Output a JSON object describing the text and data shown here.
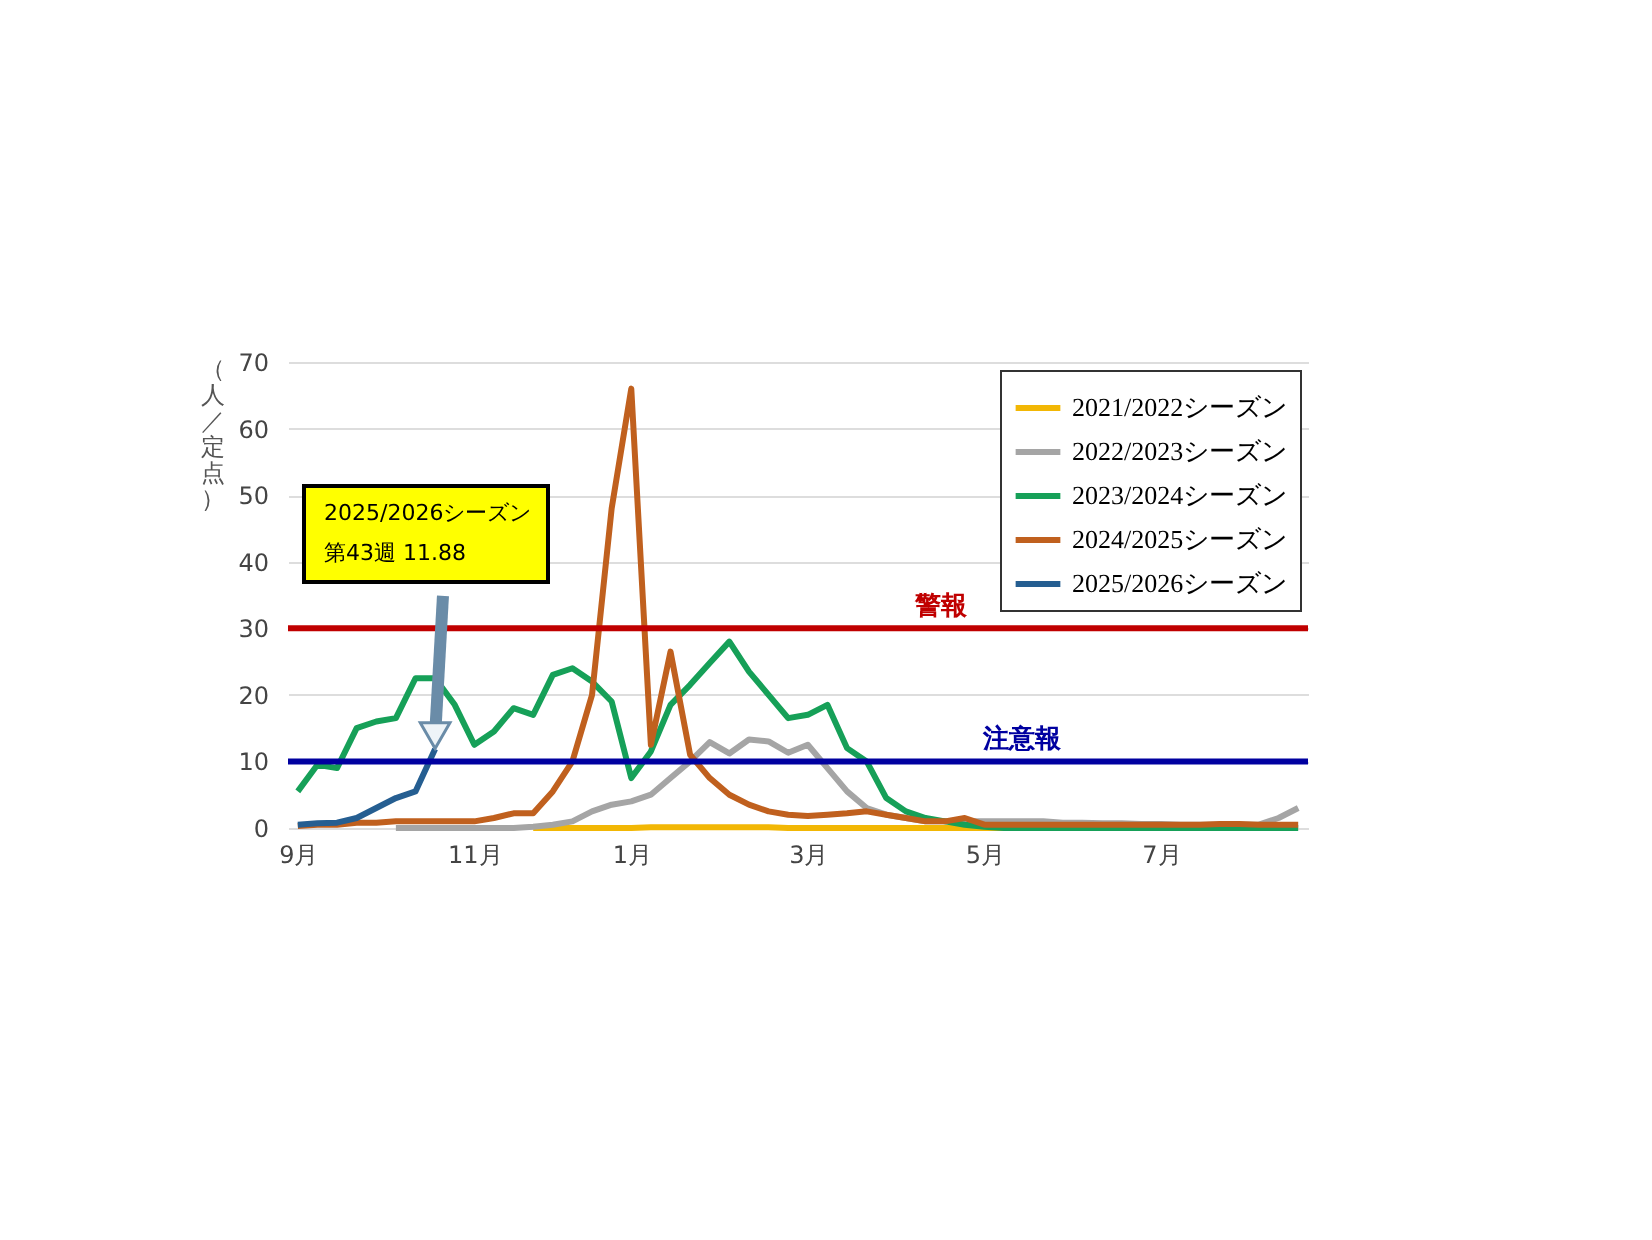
{
  "chart_data": {
    "type": "line",
    "ylabel": "（人／定点）",
    "categories": [
      "9月",
      null,
      null,
      null,
      null,
      null,
      null,
      null,
      null,
      "11月",
      null,
      null,
      null,
      null,
      null,
      null,
      null,
      "1月",
      null,
      null,
      null,
      null,
      null,
      null,
      null,
      null,
      "3月",
      null,
      null,
      null,
      null,
      null,
      null,
      null,
      null,
      "5月",
      null,
      null,
      null,
      null,
      null,
      null,
      null,
      null,
      "7月",
      null,
      null,
      null,
      null,
      null,
      null,
      null
    ],
    "ylim": [
      0,
      70
    ],
    "yticks": [
      0,
      10,
      20,
      30,
      40,
      50,
      60,
      70
    ],
    "grid": "y",
    "legend": "top right",
    "line_style": "solid",
    "marker": "none",
    "series": [
      {
        "name": "2021/2022シーズン",
        "color": "#f2b705",
        "values": [
          null,
          null,
          null,
          null,
          null,
          null,
          null,
          null,
          null,
          null,
          null,
          null,
          0,
          0,
          0,
          0,
          0,
          0,
          0.1,
          0.1,
          0.1,
          0.1,
          0.1,
          0.1,
          0.1,
          0,
          0,
          0,
          0,
          0,
          0,
          0,
          0,
          0,
          0,
          0,
          0,
          0,
          null,
          null,
          null,
          null,
          null,
          null,
          null,
          null,
          null,
          null,
          null,
          null,
          null,
          null
        ]
      },
      {
        "name": "2022/2023シーズン",
        "color": "#a5a5a5",
        "values": [
          null,
          null,
          null,
          null,
          null,
          0,
          0,
          0,
          0,
          0,
          0,
          0,
          0.2,
          0.5,
          1,
          2.5,
          3.5,
          4,
          5,
          7.5,
          10,
          12.9,
          11.2,
          13.3,
          13,
          11.3,
          12.5,
          9,
          5.5,
          3,
          2,
          1.5,
          1,
          1,
          1,
          1,
          1,
          1,
          1,
          0.8,
          0.8,
          0.7,
          0.7,
          0.6,
          0.6,
          0.5,
          0.5,
          0.5,
          0.5,
          0.5,
          1.5,
          3
        ]
      },
      {
        "name": "2023/2024シーズン",
        "color": "#16a058",
        "values": [
          5.5,
          9.5,
          9,
          15,
          16,
          16.5,
          22.5,
          22.5,
          18.5,
          12.5,
          14.5,
          18,
          17,
          23,
          24,
          22,
          19,
          7.5,
          11.5,
          18.5,
          21.5,
          24.8,
          28,
          23.5,
          20,
          16.5,
          17,
          18.5,
          12,
          10,
          4.5,
          2.5,
          1.5,
          1,
          0.5,
          0.2,
          0,
          0,
          0,
          0,
          0,
          0,
          0,
          0,
          0,
          0,
          0,
          0,
          0,
          0,
          0,
          0
        ]
      },
      {
        "name": "2024/2025シーズン",
        "color": "#c0601e",
        "values": [
          0.3,
          0.5,
          0.5,
          0.8,
          0.8,
          1,
          1,
          1,
          1,
          1,
          1.5,
          2.2,
          2.2,
          5.5,
          10,
          20,
          48,
          66,
          12.5,
          26.5,
          11,
          7.5,
          5,
          3.5,
          2.5,
          2,
          1.8,
          2,
          2.2,
          2.5,
          2,
          1.5,
          1,
          1,
          1.5,
          0.5,
          0.5,
          0.5,
          0.5,
          0.5,
          0.5,
          0.5,
          0.5,
          0.5,
          0.5,
          0.5,
          0.5,
          0.6,
          0.6,
          0.5,
          0.5,
          0.5
        ]
      },
      {
        "name": "2025/2026シーズン",
        "color": "#255e91",
        "values": [
          0.5,
          0.7,
          0.8,
          1.5,
          3,
          4.5,
          5.5,
          11.88,
          null,
          null,
          null,
          null,
          null,
          null,
          null,
          null,
          null,
          null,
          null,
          null,
          null,
          null,
          null,
          null,
          null,
          null,
          null,
          null,
          null,
          null,
          null,
          null,
          null,
          null,
          null,
          null,
          null,
          null,
          null,
          null,
          null,
          null,
          null,
          null,
          null,
          null,
          null,
          null,
          null,
          null,
          null,
          null
        ]
      }
    ],
    "ref_lines": [
      {
        "axis": "y",
        "value": 30,
        "label": "警報",
        "color": "#c00000"
      },
      {
        "axis": "y",
        "value": 10,
        "label": "注意報",
        "color": "#0000a0"
      }
    ],
    "annotations": [
      "2025/2026シーズン",
      "第43週  11.88"
    ]
  }
}
